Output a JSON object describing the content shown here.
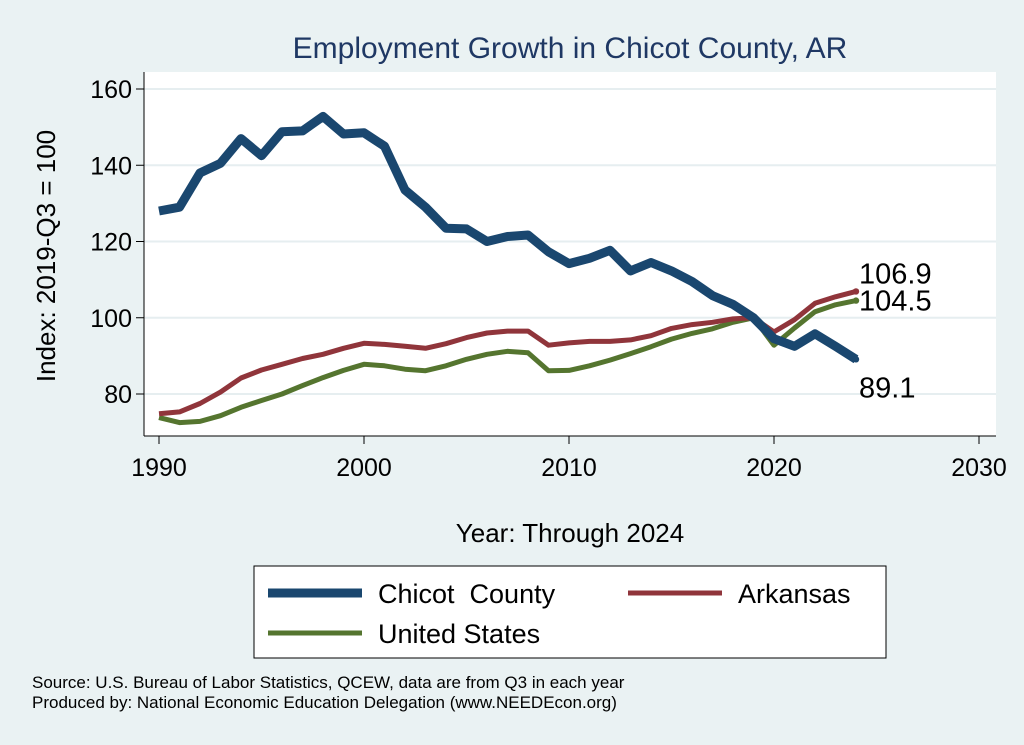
{
  "chart_data": {
    "type": "line",
    "title": "Employment Growth in Chicot County, AR",
    "xlabel": "Year: Through 2024",
    "ylabel": "Index: 2019-Q3 = 100",
    "xlim": [
      1990,
      2030
    ],
    "ylim": [
      70,
      164
    ],
    "xticks": [
      "1990",
      "2000",
      "2010",
      "2020",
      "2030"
    ],
    "yticks": [
      "80",
      "100",
      "120",
      "140",
      "160"
    ],
    "grid": true,
    "legend_position": "bottom",
    "x": [
      1990,
      1991,
      1992,
      1993,
      1994,
      1995,
      1996,
      1997,
      1998,
      1999,
      2000,
      2001,
      2002,
      2003,
      2004,
      2005,
      2006,
      2007,
      2008,
      2009,
      2010,
      2011,
      2012,
      2013,
      2014,
      2015,
      2016,
      2017,
      2018,
      2019,
      2020,
      2021,
      2022,
      2023,
      2024
    ],
    "series": [
      {
        "name": "Chicot  County",
        "color": "#1a476f",
        "end_label": "89.1",
        "values": [
          128,
          129,
          138,
          140.5,
          147,
          142.5,
          148.8,
          149,
          152.8,
          148.2,
          148.5,
          145,
          133.5,
          129,
          123.5,
          123.3,
          120,
          121.3,
          121.7,
          117.3,
          114.2,
          115.6,
          117.7,
          112.3,
          114.5,
          112.3,
          109.5,
          105.8,
          103.5,
          100,
          94.5,
          92.5,
          95.8,
          92.5,
          89.1
        ]
      },
      {
        "name": "Arkansas",
        "color": "#90353b",
        "end_label": "106.9",
        "values": [
          74.8,
          75.3,
          77.5,
          80.5,
          84.2,
          86.3,
          87.8,
          89.3,
          90.4,
          92,
          93.3,
          93,
          92.5,
          92,
          93.2,
          94.8,
          96,
          96.5,
          96.5,
          92.8,
          93.4,
          93.8,
          93.8,
          94.2,
          95.3,
          97.2,
          98.2,
          98.8,
          99.7,
          100,
          96.3,
          99.5,
          103.8,
          105.5,
          106.9
        ]
      },
      {
        "name": "United States",
        "color": "#55752f",
        "end_label": "104.5",
        "values": [
          73.8,
          72.5,
          72.8,
          74.3,
          76.5,
          78.3,
          80,
          82.2,
          84.3,
          86.2,
          87.8,
          87.4,
          86.5,
          86.1,
          87.4,
          89.1,
          90.4,
          91.2,
          90.8,
          86.1,
          86.2,
          87.4,
          88.9,
          90.6,
          92.4,
          94.4,
          95.9,
          97.1,
          98.8,
          100,
          92.8,
          97.3,
          101.6,
          103.4,
          104.5
        ]
      }
    ],
    "source_line1": "Source: U.S. Bureau of Labor Statistics, QCEW, data are from Q3 in each year",
    "source_line2": "Produced by: National Economic Education Delegation (www.NEEDEcon.org)"
  }
}
